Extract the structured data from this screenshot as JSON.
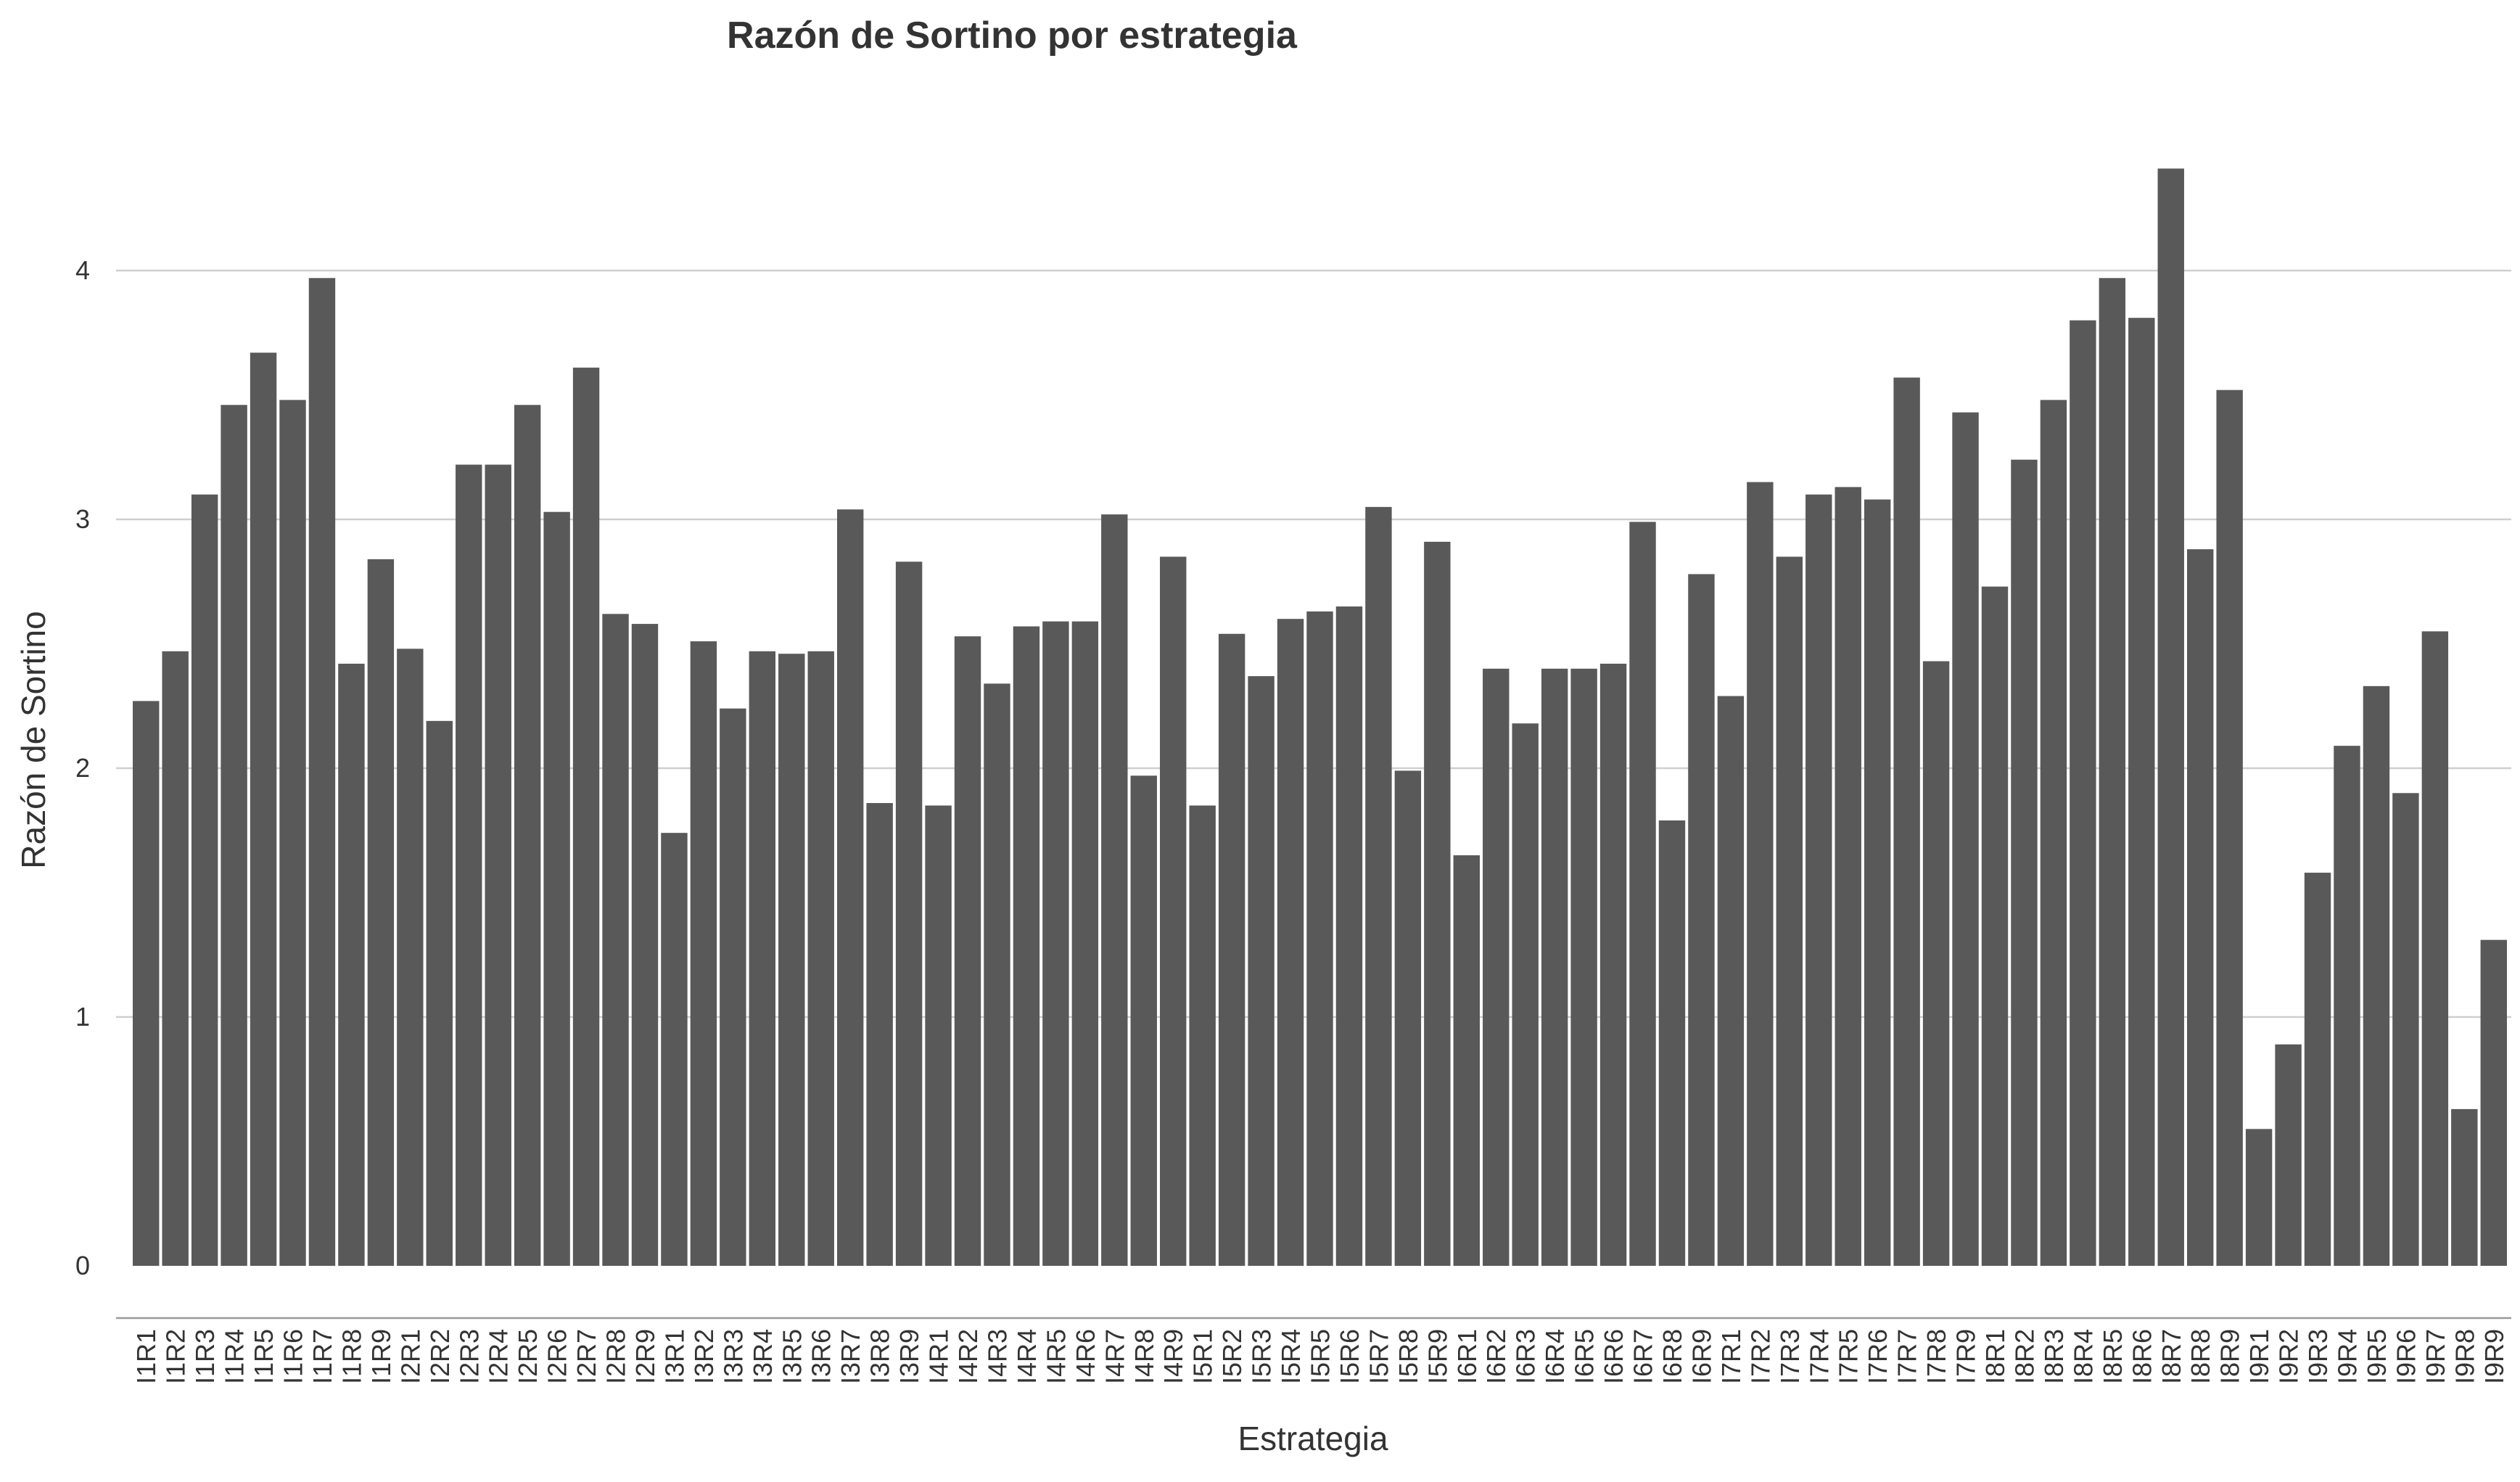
{
  "chart_data": {
    "type": "bar",
    "title": "Razón de Sortino por estrategia",
    "xlabel": "Estrategia",
    "ylabel": "Razón de Sortino",
    "ylim": [
      0,
      4.4
    ],
    "yticks": [
      "0",
      "1",
      "2",
      "3",
      "4"
    ],
    "grid": "horizontal",
    "bar_color": "#595959",
    "categories": [
      "I1R1",
      "I1R2",
      "I1R3",
      "I1R4",
      "I1R5",
      "I1R6",
      "I1R7",
      "I1R8",
      "I1R9",
      "I2R1",
      "I2R2",
      "I2R3",
      "I2R4",
      "I2R5",
      "I2R6",
      "I2R7",
      "I2R8",
      "I2R9",
      "I3R1",
      "I3R2",
      "I3R3",
      "I3R4",
      "I3R5",
      "I3R6",
      "I3R7",
      "I3R8",
      "I3R9",
      "I4R1",
      "I4R2",
      "I4R3",
      "I4R4",
      "I4R5",
      "I4R6",
      "I4R7",
      "I4R8",
      "I4R9",
      "I5R1",
      "I5R2",
      "I5R3",
      "I5R4",
      "I5R5",
      "I5R6",
      "I5R7",
      "I5R8",
      "I5R9",
      "I6R1",
      "I6R2",
      "I6R3",
      "I6R4",
      "I6R5",
      "I6R6",
      "I6R7",
      "I6R8",
      "I6R9",
      "I7R1",
      "I7R2",
      "I7R3",
      "I7R4",
      "I7R5",
      "I7R6",
      "I7R7",
      "I7R8",
      "I7R9",
      "I8R1",
      "I8R2",
      "I8R3",
      "I8R4",
      "I8R5",
      "I8R6",
      "I8R7",
      "I8R8",
      "I8R9",
      "I9R1",
      "I9R2",
      "I9R3",
      "I9R4",
      "I9R5",
      "I9R6",
      "I9R7",
      "I9R8",
      "I9R9"
    ],
    "values": [
      2.27,
      2.47,
      3.1,
      3.46,
      3.67,
      3.48,
      3.97,
      2.42,
      2.84,
      2.48,
      2.19,
      3.22,
      3.22,
      3.46,
      3.03,
      3.61,
      2.62,
      2.58,
      1.74,
      2.51,
      2.24,
      2.47,
      2.46,
      2.47,
      3.04,
      1.86,
      2.83,
      1.85,
      2.53,
      2.34,
      2.57,
      2.59,
      2.59,
      3.02,
      1.97,
      2.85,
      1.85,
      2.54,
      2.37,
      2.6,
      2.63,
      2.65,
      3.05,
      1.99,
      2.91,
      1.65,
      2.4,
      2.18,
      2.4,
      2.4,
      2.42,
      2.99,
      1.79,
      2.78,
      2.29,
      3.15,
      2.85,
      3.1,
      3.13,
      3.08,
      3.57,
      2.43,
      3.43,
      2.73,
      3.24,
      3.48,
      3.8,
      3.97,
      3.81,
      4.41,
      2.88,
      3.52,
      0.55,
      0.89,
      1.58,
      2.09,
      2.33,
      1.9,
      2.55,
      0.63,
      1.31
    ]
  }
}
